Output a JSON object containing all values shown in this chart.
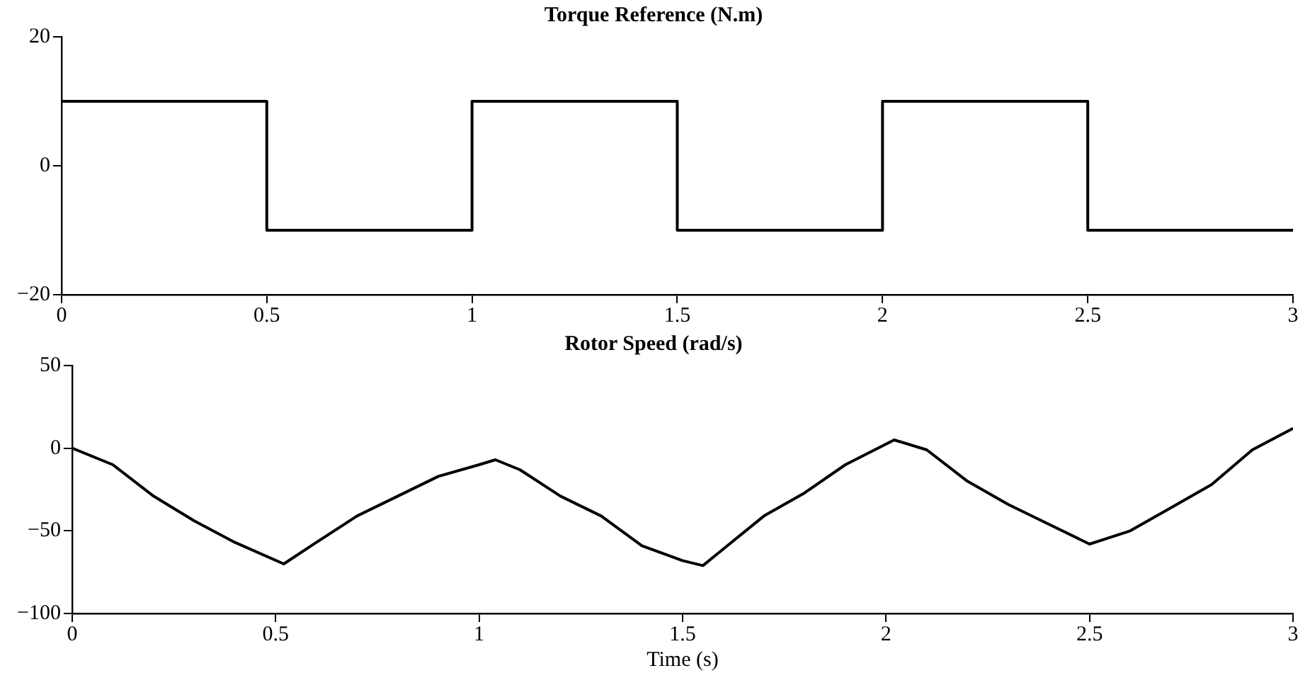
{
  "chart_data": [
    {
      "type": "step",
      "title": "Torque Reference (N.m)",
      "x": [
        0,
        0.5,
        1,
        1.5,
        2,
        2.5,
        3
      ],
      "values": [
        10,
        -10,
        10,
        -10,
        10,
        -10,
        -10
      ],
      "color": "#000000",
      "xlim": [
        0,
        3
      ],
      "xticks": [
        0,
        0.5,
        1,
        1.5,
        2,
        2.5,
        3
      ],
      "ylim": [
        -20,
        20
      ],
      "yticks": [
        -20,
        0,
        20
      ],
      "grid": false,
      "legend": false
    },
    {
      "type": "line",
      "title": "Rotor Speed (rad/s)",
      "xlabel": "Time (s)",
      "x": [
        0,
        0.1,
        0.2,
        0.3,
        0.4,
        0.52,
        0.6,
        0.7,
        0.8,
        0.9,
        1.0,
        1.04,
        1.1,
        1.2,
        1.3,
        1.4,
        1.5,
        1.55,
        1.6,
        1.7,
        1.8,
        1.9,
        2.02,
        2.1,
        2.2,
        2.3,
        2.4,
        2.5,
        2.6,
        2.7,
        2.8,
        2.9,
        3.0
      ],
      "values": [
        0,
        -10,
        -29,
        -44,
        -57,
        -70,
        -57,
        -41,
        -29,
        -17,
        -10,
        -7,
        -13,
        -29,
        -41,
        -59,
        -68,
        -71,
        -61,
        -41,
        -27,
        -10,
        5,
        -1,
        -20,
        -34,
        -46,
        -58,
        -50,
        -36,
        -22,
        -1,
        12
      ],
      "color": "#000000",
      "xlim": [
        0,
        3
      ],
      "xticks": [
        0,
        0.5,
        1,
        1.5,
        2,
        2.5,
        3
      ],
      "ylim": [
        -100,
        50
      ],
      "yticks": [
        -100,
        -50,
        0,
        50
      ],
      "grid": false,
      "legend": false
    }
  ]
}
